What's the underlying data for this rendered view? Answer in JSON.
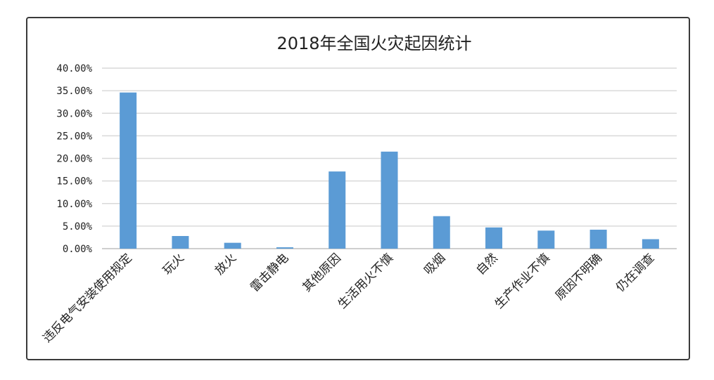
{
  "chart_data": {
    "type": "bar",
    "title": "2018年全国火灾起因统计",
    "categories": [
      "违反电气安装使用规定",
      "玩火",
      "放火",
      "雷击静电",
      "其他原因",
      "生活用火不慎",
      "吸烟",
      "自然",
      "生产作业不慎",
      "原因不明确",
      "仍在调查"
    ],
    "values": [
      34.6,
      2.8,
      1.3,
      0.3,
      17.1,
      21.5,
      7.2,
      4.7,
      4.0,
      4.2,
      2.1
    ],
    "yticks": [
      "0.00%",
      "5.00%",
      "10.00%",
      "15.00%",
      "20.00%",
      "25.00%",
      "30.00%",
      "35.00%",
      "40.00%"
    ],
    "ylim": [
      0,
      40
    ],
    "grid": true,
    "bar_color": "#5b9bd5",
    "grid_color": "#d9d9d9",
    "axis_color": "#bfbfbf",
    "text_color": "#222222"
  }
}
